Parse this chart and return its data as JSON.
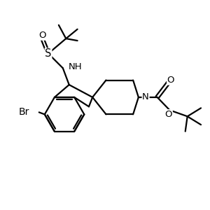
{
  "bg_color": "#ffffff",
  "line_color": "#000000",
  "lw": 1.6,
  "fs": 9.5,
  "figsize": [
    3.0,
    3.0
  ],
  "dpi": 100,
  "xlim": [
    0,
    10
  ],
  "ylim": [
    0,
    10
  ]
}
